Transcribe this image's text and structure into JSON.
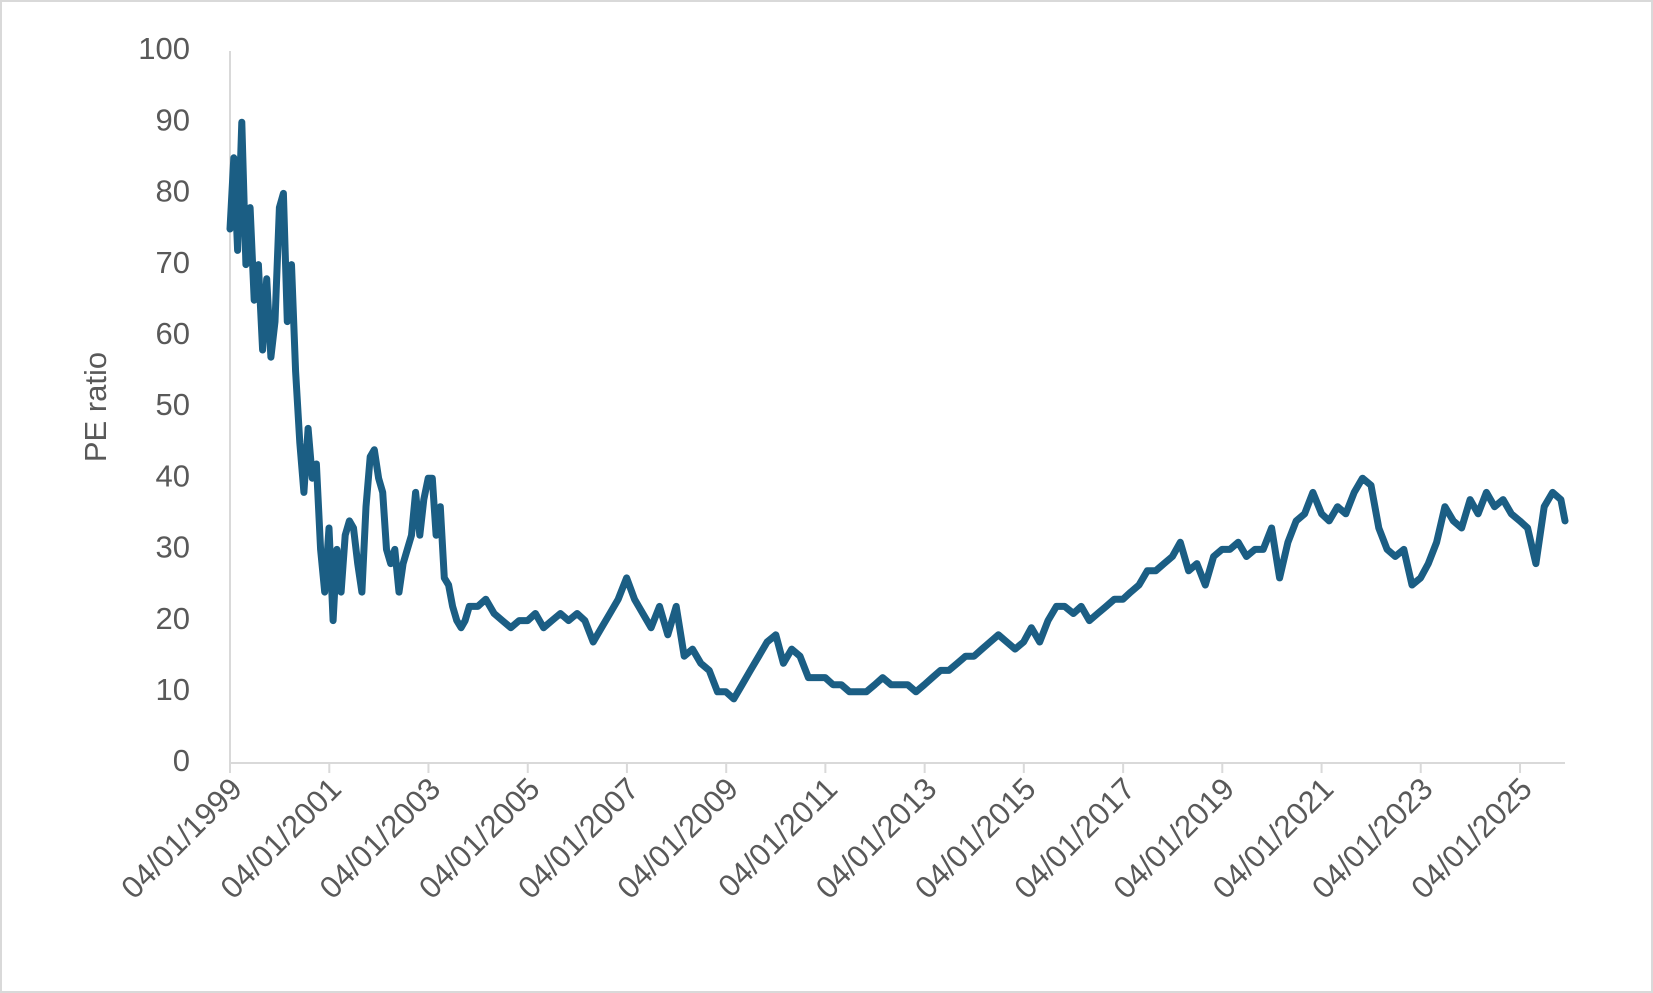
{
  "chart_data": {
    "type": "line",
    "y_label": "PE ratio",
    "color": "#1b5e84",
    "x": [
      "04/01/1999",
      "01/02/1999",
      "01/03/1999",
      "01/04/1999",
      "01/05/1999",
      "01/06/1999",
      "01/07/1999",
      "01/08/1999",
      "01/09/1999",
      "01/10/1999",
      "01/11/1999",
      "01/12/1999",
      "03/01/2000",
      "01/02/2000",
      "01/03/2000",
      "01/04/2000",
      "01/05/2000",
      "01/06/2000",
      "01/07/2000",
      "01/08/2000",
      "01/09/2000",
      "01/10/2000",
      "01/11/2000",
      "01/12/2000",
      "02/01/2001",
      "01/02/2001",
      "01/03/2001",
      "01/04/2001",
      "01/05/2001",
      "01/06/2001",
      "01/07/2001",
      "01/08/2001",
      "01/09/2001",
      "01/10/2001",
      "01/11/2001",
      "01/12/2001",
      "02/01/2002",
      "01/02/2002",
      "01/03/2002",
      "01/04/2002",
      "01/05/2002",
      "01/06/2002",
      "01/07/2002",
      "01/08/2002",
      "01/09/2002",
      "01/10/2002",
      "01/11/2002",
      "01/12/2002",
      "02/01/2003",
      "01/02/2003",
      "01/03/2003",
      "01/04/2003",
      "01/05/2003",
      "01/06/2003",
      "01/07/2003",
      "01/08/2003",
      "01/09/2003",
      "01/10/2003",
      "01/11/2003",
      "01/12/2003",
      "02/01/2004",
      "01/03/2004",
      "01/05/2004",
      "01/07/2004",
      "01/09/2004",
      "01/11/2004",
      "03/01/2005",
      "01/03/2005",
      "01/05/2005",
      "01/07/2005",
      "01/09/2005",
      "01/11/2005",
      "02/01/2006",
      "01/03/2006",
      "01/05/2006",
      "01/07/2006",
      "01/09/2006",
      "01/11/2006",
      "02/01/2007",
      "01/03/2007",
      "01/05/2007",
      "01/07/2007",
      "01/09/2007",
      "01/11/2007",
      "02/01/2008",
      "01/03/2008",
      "01/05/2008",
      "01/07/2008",
      "01/09/2008",
      "01/11/2008",
      "02/01/2009",
      "01/03/2009",
      "01/05/2009",
      "01/07/2009",
      "01/09/2009",
      "01/11/2009",
      "04/01/2010",
      "01/03/2010",
      "01/05/2010",
      "01/07/2010",
      "01/09/2010",
      "01/11/2010",
      "03/01/2011",
      "01/03/2011",
      "01/05/2011",
      "01/07/2011",
      "01/09/2011",
      "01/11/2011",
      "03/01/2012",
      "01/03/2012",
      "01/05/2012",
      "01/07/2012",
      "01/09/2012",
      "01/11/2012",
      "02/01/2013",
      "01/03/2013",
      "01/05/2013",
      "01/07/2013",
      "01/09/2013",
      "01/11/2013",
      "02/01/2014",
      "01/03/2014",
      "01/05/2014",
      "01/07/2014",
      "01/09/2014",
      "01/11/2014",
      "02/01/2015",
      "01/03/2015",
      "01/05/2015",
      "01/07/2015",
      "01/09/2015",
      "01/11/2015",
      "04/01/2016",
      "01/03/2016",
      "01/05/2016",
      "01/07/2016",
      "01/09/2016",
      "01/11/2016",
      "03/01/2017",
      "01/03/2017",
      "01/05/2017",
      "01/07/2017",
      "01/09/2017",
      "01/11/2017",
      "02/01/2018",
      "01/03/2018",
      "01/05/2018",
      "01/07/2018",
      "01/09/2018",
      "01/11/2018",
      "02/01/2019",
      "01/03/2019",
      "01/05/2019",
      "01/07/2019",
      "01/09/2019",
      "01/11/2019",
      "02/01/2020",
      "01/03/2020",
      "01/05/2020",
      "01/07/2020",
      "01/09/2020",
      "01/11/2020",
      "04/01/2021",
      "01/03/2021",
      "01/05/2021",
      "01/07/2021",
      "01/09/2021",
      "01/11/2021",
      "03/01/2022",
      "01/03/2022",
      "01/05/2022",
      "01/07/2022",
      "01/09/2022",
      "01/11/2022",
      "03/01/2023",
      "01/03/2023",
      "01/05/2023",
      "01/07/2023",
      "01/09/2023",
      "01/11/2023",
      "02/01/2024",
      "01/03/2024",
      "01/05/2024",
      "01/07/2024",
      "01/09/2024",
      "01/11/2024",
      "02/01/2025",
      "01/03/2025",
      "01/05/2025",
      "01/07/2025",
      "01/09/2025",
      "01/11/2025",
      "01/12/2025"
    ],
    "values": [
      75,
      85,
      72,
      90,
      70,
      78,
      65,
      70,
      58,
      68,
      57,
      62,
      78,
      80,
      62,
      70,
      55,
      45,
      38,
      47,
      40,
      42,
      30,
      24,
      33,
      20,
      30,
      24,
      32,
      34,
      33,
      28,
      24,
      36,
      43,
      44,
      40,
      38,
      30,
      28,
      30,
      24,
      28,
      30,
      32,
      38,
      32,
      37,
      40,
      40,
      32,
      36,
      26,
      25,
      22,
      20,
      19,
      20,
      22,
      22,
      22,
      23,
      21,
      20,
      19,
      20,
      20,
      21,
      19,
      20,
      21,
      20,
      21,
      20,
      17,
      19,
      21,
      23,
      26,
      23,
      21,
      19,
      22,
      18,
      22,
      15,
      16,
      14,
      13,
      10,
      10,
      9,
      11,
      13,
      15,
      17,
      18,
      14,
      16,
      15,
      12,
      12,
      12,
      11,
      11,
      10,
      10,
      10,
      11,
      12,
      11,
      11,
      11,
      10,
      11,
      12,
      13,
      13,
      14,
      15,
      15,
      16,
      17,
      18,
      17,
      16,
      17,
      19,
      17,
      20,
      22,
      22,
      21,
      22,
      20,
      21,
      22,
      23,
      23,
      24,
      25,
      27,
      27,
      28,
      29,
      31,
      27,
      28,
      25,
      29,
      30,
      30,
      31,
      29,
      30,
      30,
      33,
      26,
      31,
      34,
      35,
      38,
      35,
      34,
      36,
      35,
      38,
      40,
      39,
      33,
      30,
      29,
      30,
      25,
      26,
      28,
      31,
      36,
      34,
      33,
      37,
      35,
      38,
      36,
      37,
      35,
      34,
      33,
      28,
      36,
      38,
      37,
      34
    ],
    "xlim": [
      "04/01/1999",
      "01/12/2025"
    ],
    "xticks": [
      "04/01/1999",
      "04/01/2001",
      "04/01/2003",
      "04/01/2005",
      "04/01/2007",
      "04/01/2009",
      "04/01/2011",
      "04/01/2013",
      "04/01/2015",
      "04/01/2017",
      "04/01/2019",
      "04/01/2021",
      "04/01/2023",
      "04/01/2025"
    ],
    "ylim": [
      0,
      100
    ],
    "yticks": [
      0,
      10,
      20,
      30,
      40,
      50,
      60,
      70,
      80,
      90,
      100
    ],
    "grid": false
  }
}
